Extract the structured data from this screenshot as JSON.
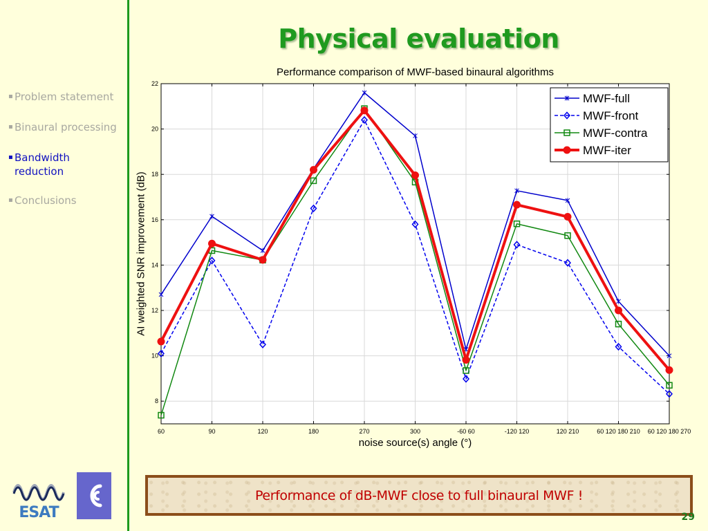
{
  "slide": {
    "title": "Physical evaluation",
    "page_number": "29",
    "callout": "Performance of dB-MWF close to full binaural MWF !",
    "logos": {
      "esat": "ESAT",
      "ear": "ear-logo"
    }
  },
  "nav": {
    "bullet": "▪",
    "items": [
      {
        "label": "Problem statement",
        "active": false
      },
      {
        "label": "Binaural processing",
        "active": false
      },
      {
        "label": "Bandwidth",
        "label2": "reduction",
        "active": true
      },
      {
        "label": "Conclusions",
        "active": false
      }
    ]
  },
  "colors": {
    "background": "#FFFFDC",
    "title_green": "#1F9A1F",
    "nav_active": "#1010C0",
    "nav_inactive": "#A8A8A0",
    "callout_text": "#C00000",
    "callout_border": "#8B4E1A"
  },
  "chart_data": {
    "type": "line",
    "title": "Performance comparison of MWF-based binaural algorithms",
    "xlabel": "noise source(s) angle (°)",
    "ylabel": "AI weighted SNR improvement (dB)",
    "categories": [
      "60",
      "90",
      "120",
      "180",
      "270",
      "300",
      "-60 60",
      "-120 120",
      "120 210",
      "60 120 180 210",
      "60 120 180 270"
    ],
    "ylim": [
      7,
      22
    ],
    "yticks": [
      8,
      10,
      12,
      14,
      16,
      18,
      20,
      22
    ],
    "grid": true,
    "legend_position": "top-right",
    "series": [
      {
        "name": "MWF-full",
        "color": "#0000CC",
        "dash": "solid",
        "marker": "star",
        "width": 1.5,
        "values": [
          12.7,
          16.15,
          14.64,
          18.25,
          21.6,
          19.7,
          10.28,
          17.28,
          16.85,
          12.4,
          10.0
        ]
      },
      {
        "name": "MWF-front",
        "color": "#0000EE",
        "dash": "dashed",
        "marker": "diamond",
        "width": 1.5,
        "values": [
          10.1,
          14.2,
          10.5,
          16.5,
          20.4,
          15.8,
          8.98,
          14.9,
          14.1,
          10.4,
          8.32
        ]
      },
      {
        "name": "MWF-contra",
        "color": "#118811",
        "dash": "solid",
        "marker": "square",
        "width": 1.5,
        "values": [
          7.38,
          14.64,
          14.22,
          17.72,
          20.9,
          17.66,
          9.35,
          15.82,
          15.3,
          11.4,
          8.7
        ]
      },
      {
        "name": "MWF-iter",
        "color": "#EE1111",
        "dash": "solid",
        "marker": "circle",
        "width": 4,
        "values": [
          10.63,
          14.95,
          14.23,
          18.2,
          20.82,
          17.96,
          9.82,
          16.66,
          16.13,
          12.0,
          9.37
        ]
      }
    ]
  }
}
